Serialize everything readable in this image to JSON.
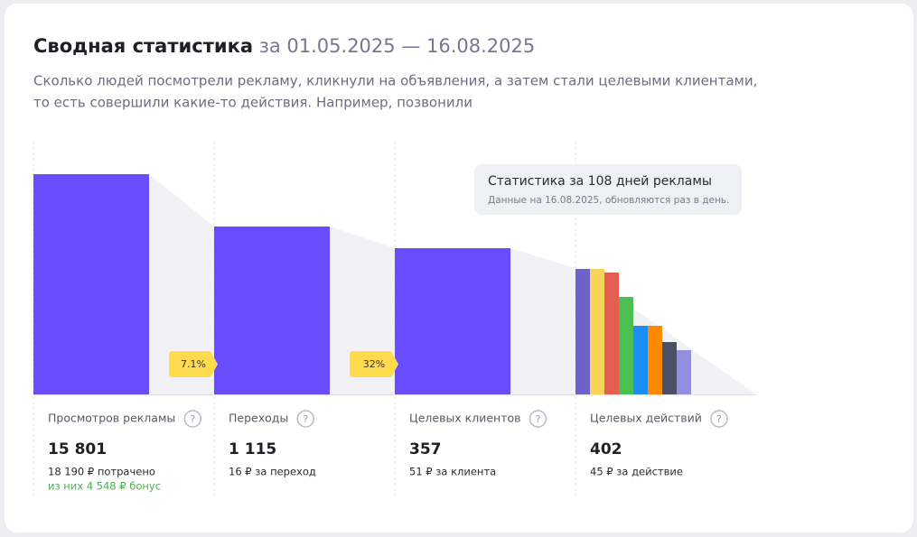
{
  "header": {
    "title": "Сводная статистика",
    "period": "за 01.05.2025 — 16.08.2025",
    "description": [
      "Сколько людей посмотрели рекламу, кликнули на объявления, а затем стали целевыми клиентами,",
      "то есть совершили какие-то действия. Например, позвонили"
    ]
  },
  "tooltip": {
    "title": "Статистика за 108 дней рекламы",
    "note": "Данные на 16.08.2025, обновляются раз в день."
  },
  "badges": [
    "7.1%",
    "32%"
  ],
  "columns": [
    {
      "label": "Просмотров рекламы",
      "value": "15 801",
      "detail": "18 190 ₽ потрачено",
      "bonus": "из них 4 548 ₽ бонус"
    },
    {
      "label": "Переходы",
      "value": "1 115",
      "detail": "16 ₽ за переход"
    },
    {
      "label": "Целевых клиентов",
      "value": "357",
      "detail": "51 ₽ за клиента"
    },
    {
      "label": "Целевых действий",
      "value": "402",
      "detail": "45 ₽ за действие"
    }
  ]
}
